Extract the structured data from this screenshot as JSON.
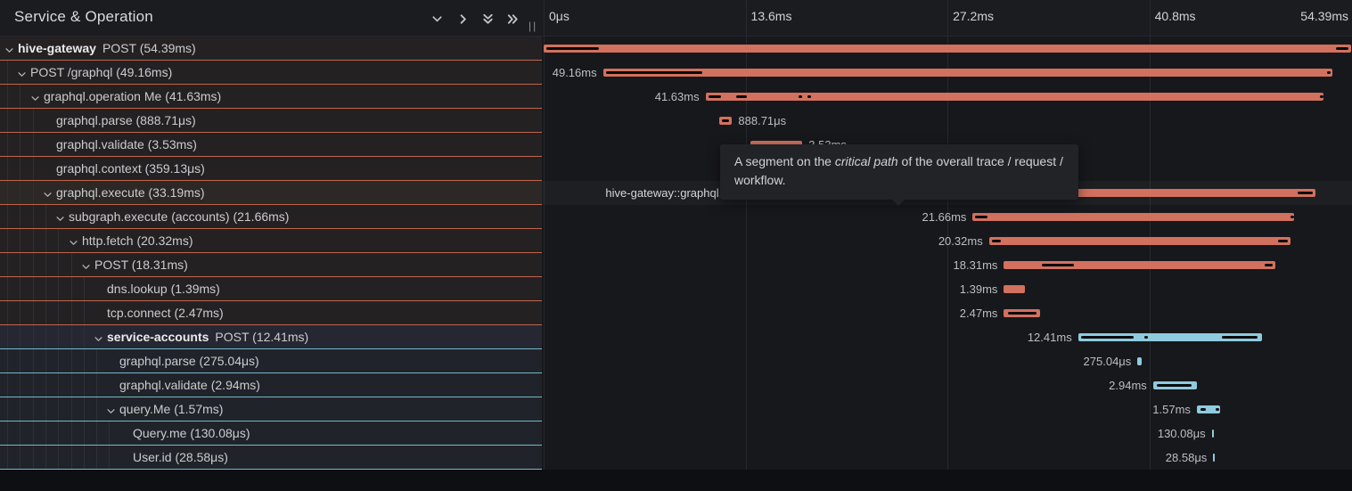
{
  "header": {
    "title": "Service & Operation",
    "grip": "||",
    "icons": [
      {
        "name": "chevron-down-icon"
      },
      {
        "name": "chevron-right-icon"
      },
      {
        "name": "double-chevron-down-icon"
      },
      {
        "name": "double-chevron-right-icon"
      }
    ]
  },
  "ruler": {
    "ticks": [
      {
        "label": "0μs",
        "ms": 0,
        "align": "left"
      },
      {
        "label": "13.6ms",
        "ms": 13.6,
        "align": "left"
      },
      {
        "label": "27.2ms",
        "ms": 27.2,
        "align": "left"
      },
      {
        "label": "40.8ms",
        "ms": 40.8,
        "align": "left"
      },
      {
        "label": "54.39ms",
        "ms": 54.39,
        "align": "right"
      }
    ]
  },
  "timeline": {
    "max_ms": 54.39
  },
  "colors": {
    "salmon": "#d2715e",
    "blue": "#8ecbde",
    "salmon_border": "#c0654c",
    "blue_border": "#74b8cd",
    "critical_path": "#0a0b0d"
  },
  "tooltip": {
    "line1_pre": "A segment on the ",
    "line1_italic": "critical path",
    "line1_post": " of the overall trace / request /",
    "line2": "workflow."
  },
  "rows": [
    {
      "bold": "hive-gateway",
      "text": "POST (54.39ms)",
      "level": 0,
      "chevron": true,
      "color": "salmon",
      "start_ms": 0,
      "dur_ms": 54.39,
      "crit": [
        [
          0,
          3.9
        ],
        [
          53.2,
          54.39
        ]
      ],
      "bar_label": null,
      "label_side": "left",
      "hover": false,
      "cell_highlight": false
    },
    {
      "bold": null,
      "text": "POST /graphql (49.16ms)",
      "level": 1,
      "chevron": true,
      "color": "salmon",
      "start_ms": 4.0,
      "dur_ms": 49.16,
      "crit": [
        [
          4.0,
          10.9
        ],
        [
          52.6,
          53.1
        ]
      ],
      "bar_label": "49.16ms",
      "label_side": "left",
      "hover": false,
      "cell_highlight": false
    },
    {
      "bold": null,
      "text": "graphql.operation Me (41.63ms)",
      "level": 2,
      "chevron": true,
      "color": "salmon",
      "start_ms": 10.9,
      "dur_ms": 41.63,
      "crit": [
        [
          10.9,
          12.1
        ],
        [
          12.8,
          13.9
        ],
        [
          17.0,
          17.35
        ],
        [
          17.6,
          17.95
        ],
        [
          52.1,
          52.5
        ]
      ],
      "bar_label": "41.63ms",
      "label_side": "left",
      "hover": false,
      "cell_highlight": false
    },
    {
      "bold": null,
      "text": "graphql.parse (888.71μs)",
      "level": 3,
      "chevron": false,
      "color": "salmon",
      "start_ms": 11.8,
      "dur_ms": 0.88871,
      "crit": [
        [
          11.8,
          12.69
        ]
      ],
      "bar_label": "888.71μs",
      "label_side": "right",
      "hover": false,
      "cell_highlight": false
    },
    {
      "bold": null,
      "text": "graphql.validate (3.53ms)",
      "level": 3,
      "chevron": false,
      "color": "salmon",
      "start_ms": 13.9,
      "dur_ms": 3.53,
      "crit": [],
      "bar_label": "3.53ms",
      "label_side": "right",
      "hover": false,
      "cell_highlight": false
    },
    {
      "bold": null,
      "text": "graphql.context (359.13μs)",
      "level": 3,
      "chevron": false,
      "color": "salmon",
      "start_ms": 17.45,
      "dur_ms": 0.35913,
      "crit": [],
      "bar_label": "359.13μs",
      "label_side": "right",
      "hover": false,
      "cell_highlight": false
    },
    {
      "bold": null,
      "text": "graphql.execute (33.19ms)",
      "level": 3,
      "chevron": true,
      "color": "salmon",
      "start_ms": 18.8,
      "dur_ms": 33.19,
      "crit": [
        [
          18.8,
          29.0
        ],
        [
          50.6,
          52.0
        ]
      ],
      "bar_label": "hive-gateway::graphql.execute | 33.19ms",
      "label_side": "left",
      "hover": true,
      "cell_highlight": false
    },
    {
      "bold": null,
      "text": "subgraph.execute (accounts) (21.66ms)",
      "level": 4,
      "chevron": true,
      "color": "salmon",
      "start_ms": 28.9,
      "dur_ms": 21.66,
      "crit": [
        [
          28.9,
          30.1
        ],
        [
          50.1,
          50.45
        ]
      ],
      "bar_label": "21.66ms",
      "label_side": "left",
      "hover": false,
      "cell_highlight": false
    },
    {
      "bold": null,
      "text": "http.fetch (20.32ms)",
      "level": 5,
      "chevron": true,
      "color": "salmon",
      "start_ms": 30.0,
      "dur_ms": 20.32,
      "crit": [
        [
          30.0,
          31.0
        ],
        [
          49.3,
          50.3
        ]
      ],
      "bar_label": "20.32ms",
      "label_side": "left",
      "hover": false,
      "cell_highlight": false
    },
    {
      "bold": null,
      "text": "POST (18.31ms)",
      "level": 6,
      "chevron": true,
      "color": "salmon",
      "start_ms": 31.0,
      "dur_ms": 18.31,
      "crit": [
        [
          33.4,
          35.9
        ],
        [
          48.4,
          49.3
        ]
      ],
      "bar_label": "18.31ms",
      "label_side": "left",
      "hover": false,
      "cell_highlight": false
    },
    {
      "bold": null,
      "text": "dns.lookup (1.39ms)",
      "level": 7,
      "chevron": false,
      "color": "salmon",
      "start_ms": 31.0,
      "dur_ms": 1.39,
      "crit": [],
      "bar_label": "1.39ms",
      "label_side": "left",
      "hover": false,
      "cell_highlight": false
    },
    {
      "bold": null,
      "text": "tcp.connect (2.47ms)",
      "level": 7,
      "chevron": false,
      "color": "salmon",
      "start_ms": 31.0,
      "dur_ms": 2.47,
      "crit": [
        [
          31.1,
          33.4
        ]
      ],
      "bar_label": "2.47ms",
      "label_side": "left",
      "hover": false,
      "cell_highlight": false
    },
    {
      "bold": "service-accounts",
      "text": "POST (12.41ms)",
      "level": 7,
      "chevron": true,
      "color": "blue",
      "start_ms": 36.0,
      "dur_ms": 12.41,
      "crit": [
        [
          36.0,
          39.9
        ],
        [
          40.3,
          40.75
        ],
        [
          45.5,
          48.3
        ]
      ],
      "bar_label": "12.41ms",
      "label_side": "left",
      "hover": false,
      "cell_highlight": true
    },
    {
      "bold": null,
      "text": "graphql.parse (275.04μs)",
      "level": 8,
      "chevron": false,
      "color": "blue",
      "start_ms": 40.0,
      "dur_ms": 0.27504,
      "crit": [],
      "bar_label": "275.04μs",
      "label_side": "left",
      "hover": false,
      "cell_highlight": false
    },
    {
      "bold": null,
      "text": "graphql.validate (2.94ms)",
      "level": 8,
      "chevron": false,
      "color": "blue",
      "start_ms": 41.05,
      "dur_ms": 2.94,
      "crit": [
        [
          41.1,
          43.85
        ]
      ],
      "bar_label": "2.94ms",
      "label_side": "left",
      "hover": false,
      "cell_highlight": false
    },
    {
      "bold": null,
      "text": "query.Me (1.57ms)",
      "level": 8,
      "chevron": true,
      "color": "blue",
      "start_ms": 44.0,
      "dur_ms": 1.57,
      "crit": [
        [
          44.05,
          44.8
        ],
        [
          45.1,
          45.5
        ]
      ],
      "bar_label": "1.57ms",
      "label_side": "left",
      "hover": false,
      "cell_highlight": false
    },
    {
      "bold": null,
      "text": "Query.me (130.08μs)",
      "level": 9,
      "chevron": false,
      "color": "blue",
      "start_ms": 45.0,
      "dur_ms": 0.13008,
      "crit": [],
      "bar_label": "130.08μs",
      "label_side": "left",
      "hover": false,
      "cell_highlight": false
    },
    {
      "bold": null,
      "text": "User.id (28.58μs)",
      "level": 9,
      "chevron": false,
      "color": "blue",
      "start_ms": 45.1,
      "dur_ms": 0.02858,
      "crit": [],
      "bar_label": "28.58μs",
      "label_side": "left",
      "hover": false,
      "cell_highlight": false
    }
  ]
}
